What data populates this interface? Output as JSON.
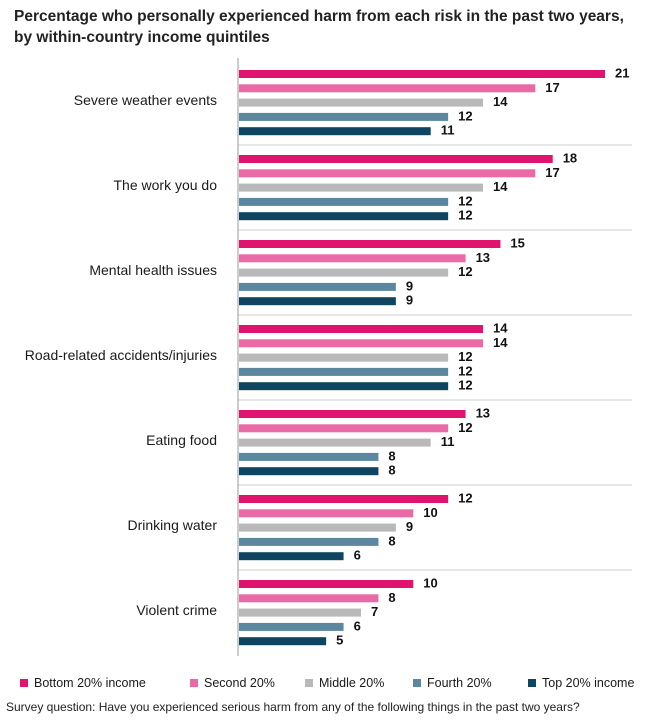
{
  "title": "Percentage who personally experienced harm from each risk in the past two years, by within-country income quintiles",
  "footnote": "Survey question: Have you experienced serious harm from any of the following things in the past two years?",
  "chart_data": {
    "type": "bar",
    "orientation": "horizontal",
    "categories": [
      "Severe weather events",
      "The work you do",
      "Mental health issues",
      "Road-related accidents/injuries",
      "Eating food",
      "Drinking water",
      "Violent crime"
    ],
    "series": [
      {
        "name": "Bottom 20% income",
        "color": "#e0146f",
        "values": [
          21,
          18,
          15,
          14,
          13,
          12,
          10
        ]
      },
      {
        "name": "Second 20%",
        "color": "#ea6aa6",
        "values": [
          17,
          17,
          13,
          14,
          12,
          10,
          8
        ]
      },
      {
        "name": "Middle 20%",
        "color": "#b9b9b9",
        "values": [
          14,
          14,
          12,
          12,
          11,
          9,
          7
        ]
      },
      {
        "name": "Fourth 20%",
        "color": "#5b879f",
        "values": [
          12,
          12,
          9,
          12,
          8,
          8,
          6
        ]
      },
      {
        "name": "Top 20% income",
        "color": "#0f4560",
        "values": [
          11,
          12,
          9,
          12,
          8,
          6,
          5
        ]
      }
    ],
    "xlim": [
      0,
      21
    ],
    "legend_position": "bottom",
    "grid": false
  }
}
